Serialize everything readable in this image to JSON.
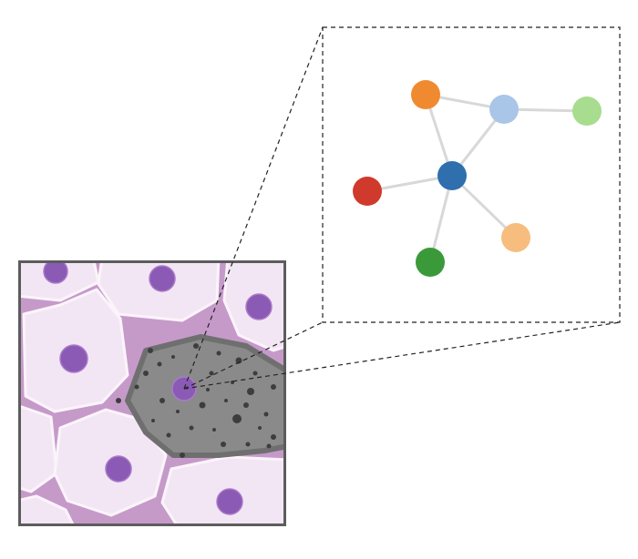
{
  "colors": {
    "background": "#ffffff",
    "tissue_frame": "#5c5c5c",
    "membrane": "#c59ac9",
    "cell_fill": "#f3e6f4",
    "cell_fill_light": "#fbf4fb",
    "nucleus": "#8b5ab5",
    "nucleus_highlight": "#a97bc9",
    "infected_cell_fill": "#8a8a8a",
    "infected_cell_border": "#6f6f6f",
    "particle": "#3d3d3d",
    "zoom_border": "#222222",
    "edge": "#d8d8d8"
  },
  "tissue": {
    "name": "epithelial-cell-layer",
    "infected_cells": 1
  },
  "network": {
    "nodes": [
      {
        "id": "center",
        "color": "#2f6fae"
      },
      {
        "id": "orange",
        "color": "#f08a30"
      },
      {
        "id": "light-blue",
        "color": "#a9c6e8"
      },
      {
        "id": "light-green",
        "color": "#a8dc8e"
      },
      {
        "id": "red",
        "color": "#d03a2c"
      },
      {
        "id": "light-orange",
        "color": "#f6bd7e"
      },
      {
        "id": "green",
        "color": "#3a9a3a"
      }
    ],
    "edges": [
      [
        "orange",
        "light-blue"
      ],
      [
        "light-blue",
        "light-green"
      ],
      [
        "orange",
        "center"
      ],
      [
        "light-blue",
        "center"
      ],
      [
        "red",
        "center"
      ],
      [
        "light-orange",
        "center"
      ],
      [
        "green",
        "center"
      ]
    ]
  }
}
